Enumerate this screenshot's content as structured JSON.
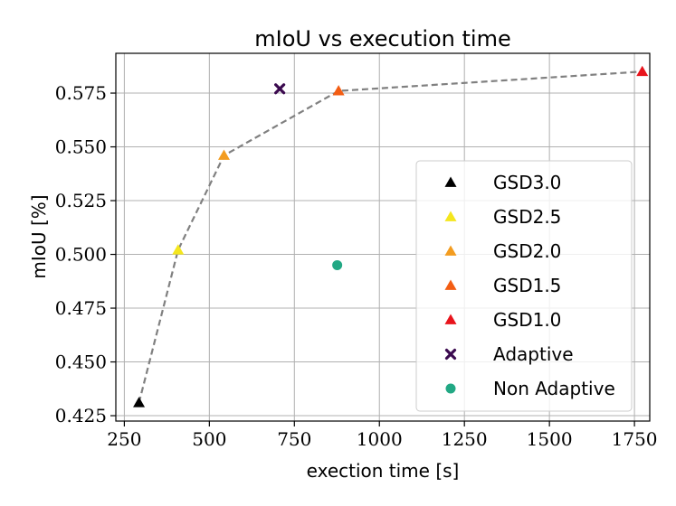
{
  "chart_data": {
    "type": "scatter",
    "title": "mIoU vs execution time",
    "xlabel": "exection time [s]",
    "ylabel": "mIoU [%]",
    "xlim": [
      225,
      1795
    ],
    "ylim": [
      0.4225,
      0.5935
    ],
    "xticks": [
      250,
      500,
      750,
      1000,
      1250,
      1500,
      1750
    ],
    "xtick_labels": [
      "250",
      "500",
      "750",
      "1000",
      "1250",
      "1500",
      "1750"
    ],
    "yticks": [
      0.425,
      0.45,
      0.475,
      0.5,
      0.525,
      0.55,
      0.575
    ],
    "ytick_labels": [
      "0.425",
      "0.450",
      "0.475",
      "0.500",
      "0.525",
      "0.550",
      "0.575"
    ],
    "grid": true,
    "legend_position": "lower-right",
    "frontier_line": {
      "style": "dashed",
      "color": "#808080",
      "x": [
        293,
        408,
        543,
        880,
        1773
      ],
      "y": [
        0.431,
        0.502,
        0.546,
        0.576,
        0.585
      ]
    },
    "series": [
      {
        "name": "GSD3.0",
        "marker": "triangle",
        "color": "#000000",
        "x": [
          293
        ],
        "y": [
          0.431
        ]
      },
      {
        "name": "GSD2.5",
        "marker": "triangle",
        "color": "#f4e61e",
        "x": [
          408
        ],
        "y": [
          0.502
        ]
      },
      {
        "name": "GSD2.0",
        "marker": "triangle",
        "color": "#f39c1f",
        "x": [
          543
        ],
        "y": [
          0.546
        ]
      },
      {
        "name": "GSD1.5",
        "marker": "triangle",
        "color": "#f35d13",
        "x": [
          880
        ],
        "y": [
          0.576
        ]
      },
      {
        "name": "GSD1.0",
        "marker": "triangle",
        "color": "#e8141c",
        "x": [
          1773
        ],
        "y": [
          0.585
        ]
      },
      {
        "name": "Adaptive",
        "marker": "x",
        "color": "#3b0a4f",
        "x": [
          707
        ],
        "y": [
          0.577
        ]
      },
      {
        "name": "Non Adaptive",
        "marker": "circle",
        "color": "#22a884",
        "x": [
          876
        ],
        "y": [
          0.495
        ]
      }
    ]
  }
}
